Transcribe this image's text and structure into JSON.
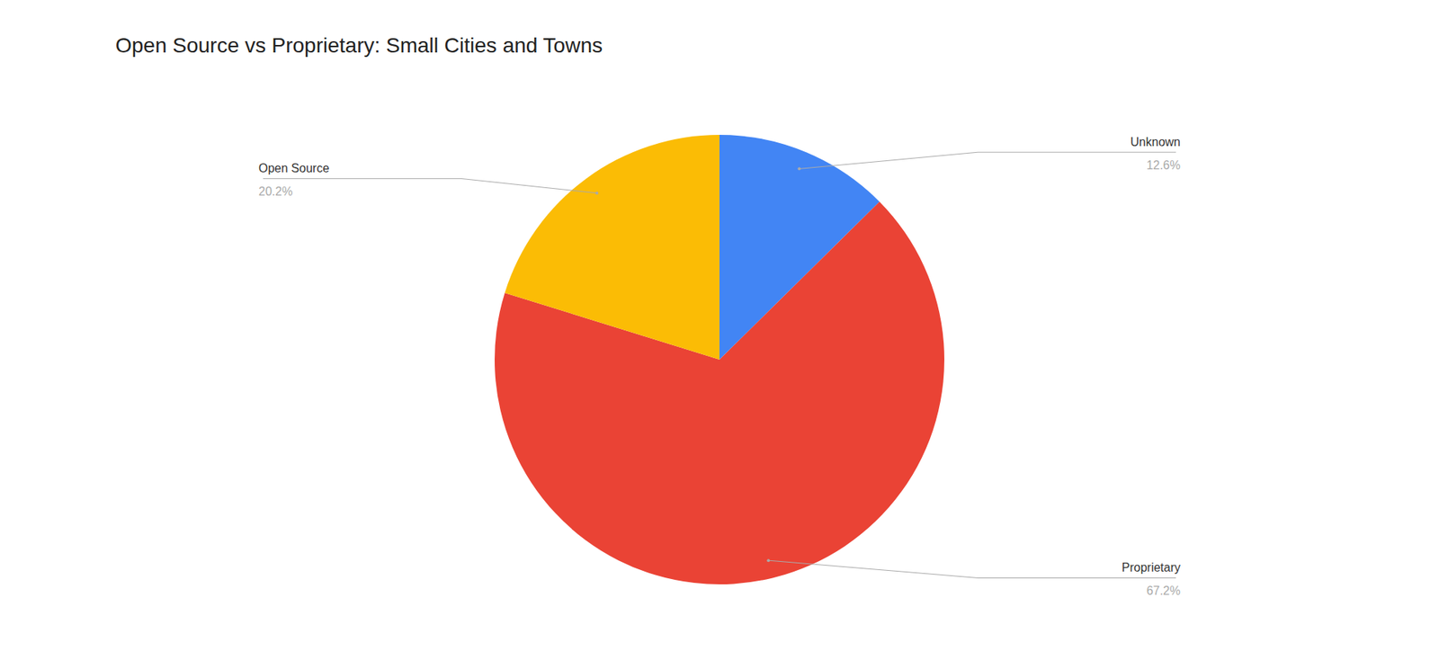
{
  "chart_data": {
    "type": "pie",
    "title": "Open Source vs Proprietary:  Small Cities and Towns",
    "categories": [
      "Unknown",
      "Proprietary",
      "Open Source"
    ],
    "values": [
      12.6,
      67.2,
      20.2
    ],
    "value_labels": [
      "12.6%",
      "67.2%",
      "20.2%"
    ],
    "colors": [
      "#4285F4",
      "#EA4335",
      "#FBBC05"
    ],
    "data_labels": true
  }
}
